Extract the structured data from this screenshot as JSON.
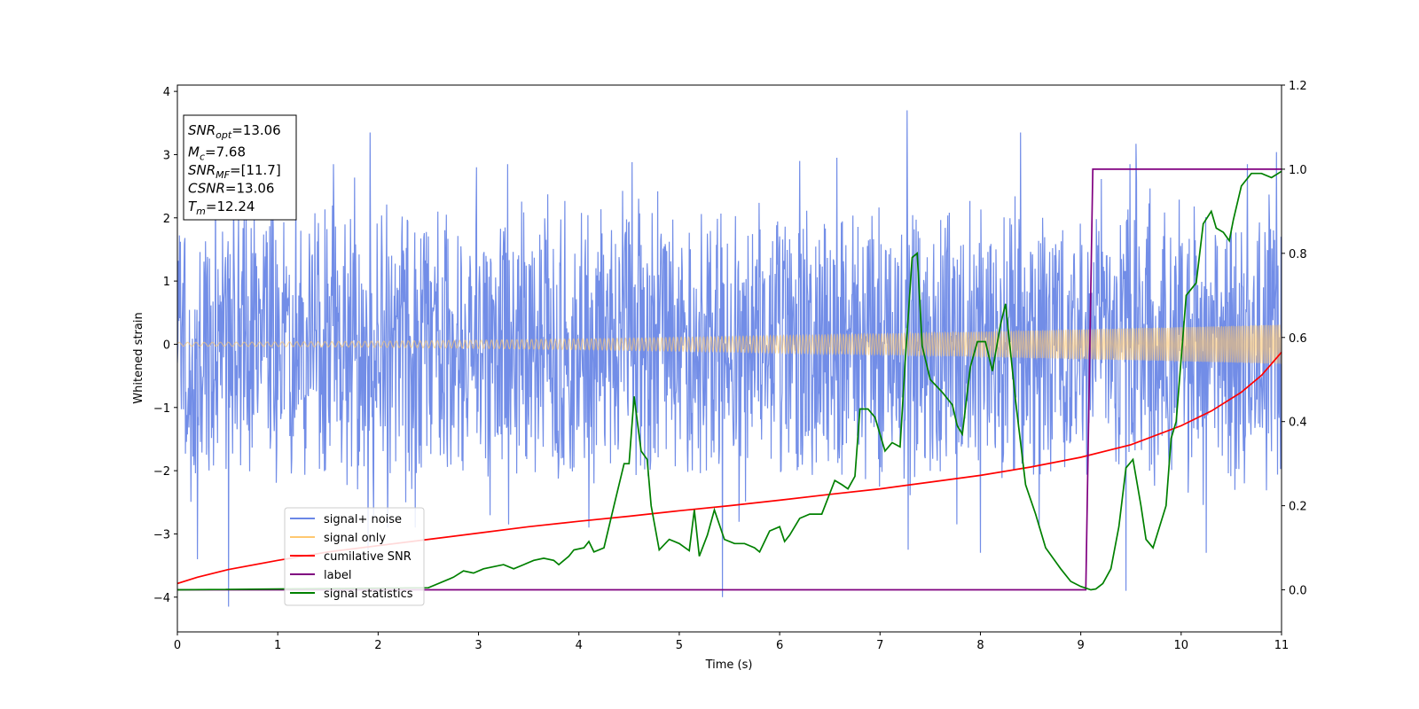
{
  "chart_data": {
    "type": "line",
    "xlabel": "Time (s)",
    "ylabel": "Whitened strain",
    "xlim": [
      0,
      11
    ],
    "ylim": [
      -4.55,
      4.1
    ],
    "y2lim": [
      -0.1,
      1.2
    ],
    "x_ticks": [
      0,
      1,
      2,
      3,
      4,
      5,
      6,
      7,
      8,
      9,
      10,
      11
    ],
    "y_ticks": [
      -4,
      -3,
      -2,
      -1,
      0,
      1,
      2,
      3,
      4
    ],
    "y2_ticks": [
      0.0,
      0.2,
      0.4,
      0.6,
      0.8,
      1.0,
      1.2
    ],
    "x_tick_labels": [
      "0",
      "1",
      "2",
      "3",
      "4",
      "5",
      "6",
      "7",
      "8",
      "9",
      "10",
      "11"
    ],
    "y_tick_labels": [
      "−4",
      "−3",
      "−2",
      "−1",
      "0",
      "1",
      "2",
      "3",
      "4"
    ],
    "y2_tick_labels": [
      "0.0",
      "0.2",
      "0.4",
      "0.6",
      "0.8",
      "1.0",
      "1.2"
    ],
    "legend": {
      "placement": "lower-left",
      "entries": [
        {
          "label": "signal+ noise",
          "color": "#6a87e6"
        },
        {
          "label": "signal only",
          "color": "#ffc870"
        },
        {
          "label": "cumilative SNR",
          "color": "#ff0000"
        },
        {
          "label": "label",
          "color": "#800080"
        },
        {
          "label": "signal statistics",
          "color": "#008000"
        }
      ]
    },
    "annotation": {
      "lines": [
        {
          "var": "SNR",
          "sub": "opt",
          "value": "=13.06"
        },
        {
          "var": "M",
          "sub": "c",
          "value": "=7.68"
        },
        {
          "var": "SNR",
          "sub": "MF",
          "value": "=[11.7]"
        },
        {
          "var": "CSNR",
          "sub": "",
          "value": "=13.06"
        },
        {
          "var": "T",
          "sub": "m",
          "value": "=12.24"
        }
      ]
    },
    "series": [
      {
        "name": "signal+ noise",
        "axis": "left",
        "color": "#6a87e6",
        "style": "noise",
        "band": [
          -2.0,
          2.0
        ],
        "peaks_up": [
          [
            1.92,
            3.35
          ],
          [
            7.27,
            3.7
          ],
          [
            8.4,
            3.35
          ],
          [
            9.55,
            3.17
          ],
          [
            10.95,
            3.04
          ],
          [
            0.38,
            2.7
          ],
          [
            2.98,
            2.8
          ],
          [
            4.53,
            2.88
          ],
          [
            6.2,
            2.9
          ],
          [
            6.57,
            2.95
          ]
        ],
        "peaks_down": [
          [
            0.51,
            -4.15
          ],
          [
            5.43,
            -4.0
          ],
          [
            9.45,
            -3.9
          ],
          [
            0.2,
            -3.4
          ],
          [
            1.9,
            -3.25
          ],
          [
            7.28,
            -3.25
          ],
          [
            8.0,
            -3.3
          ],
          [
            10.25,
            -3.3
          ]
        ]
      },
      {
        "name": "signal only",
        "axis": "left",
        "color": "#ffc870",
        "style": "chirp",
        "amp_start": 0.03,
        "amp_end": 0.31,
        "freq_start": 12,
        "freq_end": 55
      },
      {
        "name": "cumilative SNR",
        "axis": "right",
        "color": "#ff0000",
        "x": [
          0,
          0.2,
          0.5,
          1,
          1.5,
          2,
          2.5,
          3,
          3.5,
          4,
          4.5,
          5,
          5.5,
          6,
          6.5,
          7,
          7.5,
          8,
          8.5,
          9,
          9.5,
          10,
          10.3,
          10.6,
          10.8,
          11
        ],
        "y": [
          0.015,
          0.03,
          0.048,
          0.07,
          0.09,
          0.105,
          0.12,
          0.135,
          0.15,
          0.163,
          0.175,
          0.188,
          0.2,
          0.213,
          0.227,
          0.24,
          0.256,
          0.272,
          0.292,
          0.315,
          0.345,
          0.39,
          0.425,
          0.47,
          0.51,
          0.565
        ]
      },
      {
        "name": "label",
        "axis": "right",
        "color": "#800080",
        "x": [
          0,
          9.05,
          9.12,
          11
        ],
        "y": [
          0,
          0,
          1,
          1
        ]
      },
      {
        "name": "signal statistics",
        "axis": "right",
        "color": "#008000",
        "x": [
          0,
          2.5,
          2.75,
          2.85,
          2.95,
          3.05,
          3.15,
          3.25,
          3.35,
          3.45,
          3.55,
          3.65,
          3.75,
          3.8,
          3.9,
          3.95,
          4.05,
          4.1,
          4.15,
          4.25,
          4.35,
          4.45,
          4.5,
          4.55,
          4.62,
          4.68,
          4.72,
          4.8,
          4.9,
          5.0,
          5.1,
          5.15,
          5.2,
          5.28,
          5.35,
          5.45,
          5.55,
          5.65,
          5.75,
          5.8,
          5.9,
          6.0,
          6.05,
          6.1,
          6.2,
          6.3,
          6.42,
          6.55,
          6.62,
          6.68,
          6.75,
          6.8,
          6.88,
          6.95,
          7.05,
          7.12,
          7.2,
          7.25,
          7.32,
          7.37,
          7.42,
          7.5,
          7.62,
          7.72,
          7.77,
          7.82,
          7.9,
          7.97,
          8.05,
          8.12,
          8.2,
          8.25,
          8.35,
          8.45,
          8.55,
          8.65,
          8.8,
          8.9,
          9.0,
          9.1,
          9.15,
          9.22,
          9.3,
          9.38,
          9.45,
          9.52,
          9.6,
          9.65,
          9.72,
          9.85,
          9.9,
          9.95,
          10.05,
          10.15,
          10.22,
          10.3,
          10.35,
          10.42,
          10.48,
          10.52,
          10.6,
          10.7,
          10.8,
          10.9,
          11.0
        ],
        "y": [
          0.0,
          0.005,
          0.03,
          0.045,
          0.04,
          0.05,
          0.055,
          0.06,
          0.05,
          0.06,
          0.07,
          0.075,
          0.07,
          0.06,
          0.08,
          0.095,
          0.1,
          0.115,
          0.09,
          0.1,
          0.2,
          0.3,
          0.3,
          0.46,
          0.33,
          0.31,
          0.2,
          0.095,
          0.12,
          0.11,
          0.093,
          0.19,
          0.08,
          0.13,
          0.19,
          0.12,
          0.11,
          0.11,
          0.1,
          0.09,
          0.14,
          0.15,
          0.115,
          0.13,
          0.17,
          0.18,
          0.18,
          0.26,
          0.25,
          0.24,
          0.27,
          0.43,
          0.43,
          0.41,
          0.33,
          0.35,
          0.34,
          0.54,
          0.79,
          0.8,
          0.58,
          0.5,
          0.47,
          0.44,
          0.39,
          0.37,
          0.53,
          0.59,
          0.59,
          0.52,
          0.63,
          0.68,
          0.45,
          0.25,
          0.18,
          0.1,
          0.05,
          0.02,
          0.008,
          0.0,
          0.002,
          0.015,
          0.05,
          0.15,
          0.29,
          0.31,
          0.2,
          0.12,
          0.1,
          0.2,
          0.36,
          0.4,
          0.7,
          0.73,
          0.87,
          0.9,
          0.86,
          0.85,
          0.83,
          0.88,
          0.96,
          0.99,
          0.99,
          0.98,
          0.995
        ]
      }
    ]
  }
}
